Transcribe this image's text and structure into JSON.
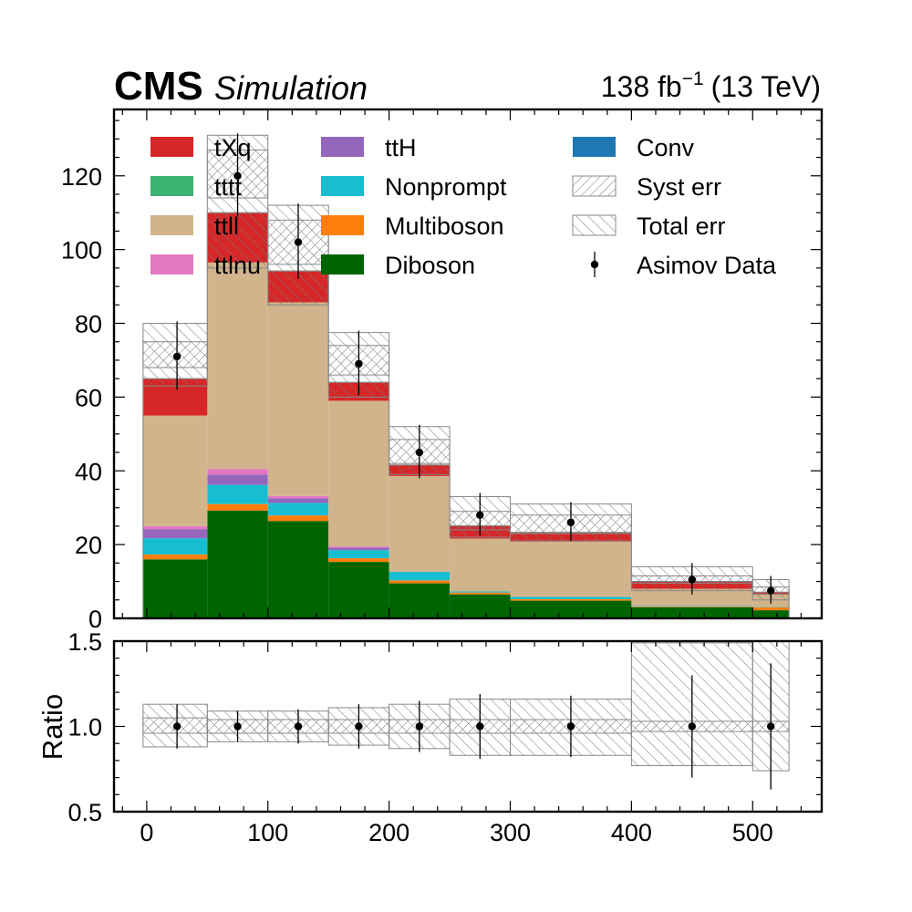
{
  "header": {
    "experiment": "CMS",
    "status": "Simulation",
    "lumi_prefix": "138 fb",
    "lumi_exponent": "−1",
    "lumi_suffix": "(13 TeV)"
  },
  "chart_data": [
    {
      "panel": "main",
      "type": "bar",
      "stacked": true,
      "x_bin_edges": [
        -3,
        50,
        100,
        150,
        200,
        250,
        300,
        400,
        500,
        530
      ],
      "xlim": [
        -27,
        557
      ],
      "ylim": [
        0,
        138
      ],
      "yticks": [
        0,
        20,
        40,
        60,
        80,
        100,
        120
      ],
      "ylabel": "",
      "grid": false,
      "legend_position": "top",
      "legend_columns": 3,
      "legend": [
        "tXq",
        "tttt",
        "ttll",
        "ttlnu",
        "ttH",
        "Nonprompt",
        "Multiboson",
        "Diboson",
        "Conv",
        "Syst err",
        "Total err",
        "Asimov Data"
      ],
      "series": [
        {
          "name": "Diboson",
          "color": "#006400",
          "values": [
            16.0,
            29.2,
            26.4,
            15.3,
            9.5,
            6.5,
            4.8,
            3.0,
            2.2
          ]
        },
        {
          "name": "Multiboson",
          "color": "#ff7f0e",
          "values": [
            1.3,
            1.8,
            1.5,
            1.0,
            0.8,
            0.5,
            0.4,
            0.2,
            0.8
          ]
        },
        {
          "name": "Nonprompt",
          "color": "#17becf",
          "values": [
            4.4,
            5.2,
            3.4,
            2.2,
            2.3,
            0.3,
            0.6,
            0.2,
            0.1
          ]
        },
        {
          "name": "ttH",
          "color": "#9467bd",
          "values": [
            2.5,
            2.8,
            1.3,
            0.7,
            0.0,
            0.0,
            0.0,
            0.0,
            0.0
          ]
        },
        {
          "name": "ttlnu",
          "color": "#e377c2",
          "values": [
            0.8,
            1.5,
            0.6,
            0.3,
            0.0,
            0.0,
            0.0,
            0.0,
            0.0
          ]
        },
        {
          "name": "ttll",
          "color": "#d2b48c",
          "values": [
            30.0,
            56.0,
            52.5,
            39.5,
            26.0,
            14.3,
            15.0,
            4.6,
            3.5
          ]
        },
        {
          "name": "tttt",
          "color": "#3cb371",
          "values": [
            0.0,
            0.0,
            0.0,
            0.0,
            0.0,
            0.0,
            0.0,
            0.0,
            0.0
          ]
        },
        {
          "name": "tXq",
          "color": "#d62728",
          "values": [
            10.0,
            13.5,
            8.5,
            5.0,
            3.0,
            3.5,
            2.5,
            2.0,
            0.5
          ]
        },
        {
          "name": "Conv",
          "color": "#1f77b4",
          "values": [
            0.0,
            0.0,
            0.0,
            0.0,
            0.0,
            0.0,
            0.0,
            0.0,
            0.0
          ]
        }
      ],
      "total_err_band": [
        [
          63.0,
          80.0
        ],
        [
          95.0,
          131.0
        ],
        [
          85.0,
          112.0
        ],
        [
          60.0,
          77.5
        ],
        [
          39.0,
          52.0
        ],
        [
          22.0,
          33.0
        ],
        [
          21.0,
          31.0
        ],
        [
          7.5,
          14.0
        ],
        [
          5.0,
          10.5
        ]
      ],
      "syst_err_band": [
        [
          68.0,
          75.0
        ],
        [
          114.0,
          127.0
        ],
        [
          96.0,
          108.0
        ],
        [
          66.0,
          74.0
        ],
        [
          42.0,
          48.5
        ],
        [
          24.0,
          29.0
        ],
        [
          23.0,
          28.0
        ],
        [
          9.5,
          11.5
        ],
        [
          6.5,
          8.5
        ]
      ],
      "data_points": {
        "name": "Asimov Data",
        "x": [
          25,
          75,
          125,
          175,
          225,
          275,
          350,
          450,
          515
        ],
        "y": [
          71.0,
          120.0,
          102.0,
          69.0,
          45.0,
          28.0,
          26.0,
          10.5,
          7.5
        ],
        "err_low": [
          9.0,
          11.0,
          10.0,
          8.5,
          7.0,
          5.5,
          5.0,
          4.0,
          3.5
        ],
        "err_high": [
          9.5,
          11.5,
          10.5,
          9.0,
          7.5,
          6.0,
          5.5,
          4.5,
          4.0
        ]
      }
    },
    {
      "panel": "ratio",
      "type": "scatter",
      "ylabel": "Ratio",
      "xlim": [
        -27,
        557
      ],
      "ylim": [
        0.5,
        1.5
      ],
      "yticks": [
        0.5,
        1.0,
        1.5
      ],
      "xticks": [
        0,
        100,
        200,
        300,
        400,
        500
      ],
      "x_bin_edges": [
        -3,
        50,
        100,
        150,
        200,
        250,
        300,
        400,
        500,
        530
      ],
      "x": [
        25,
        75,
        125,
        175,
        225,
        275,
        350,
        450,
        515
      ],
      "y": [
        1.0,
        1.0,
        1.0,
        1.0,
        1.0,
        1.0,
        1.0,
        1.0,
        1.0
      ],
      "err_low": [
        0.13,
        0.09,
        0.1,
        0.13,
        0.15,
        0.19,
        0.18,
        0.3,
        0.37
      ],
      "err_high": [
        0.13,
        0.09,
        0.1,
        0.13,
        0.15,
        0.19,
        0.18,
        0.3,
        0.37
      ],
      "total_err_band": [
        [
          0.88,
          1.13
        ],
        [
          0.91,
          1.09
        ],
        [
          0.91,
          1.09
        ],
        [
          0.89,
          1.11
        ],
        [
          0.87,
          1.13
        ],
        [
          0.83,
          1.16
        ],
        [
          0.83,
          1.16
        ],
        [
          0.77,
          1.49
        ],
        [
          0.74,
          1.52
        ]
      ],
      "syst_err_band": [
        [
          0.96,
          1.05
        ],
        [
          0.96,
          1.04
        ],
        [
          0.96,
          1.04
        ],
        [
          0.96,
          1.04
        ],
        [
          0.96,
          1.04
        ],
        [
          0.96,
          1.04
        ],
        [
          0.96,
          1.04
        ],
        [
          0.97,
          1.03
        ],
        [
          0.97,
          1.03
        ]
      ]
    }
  ]
}
